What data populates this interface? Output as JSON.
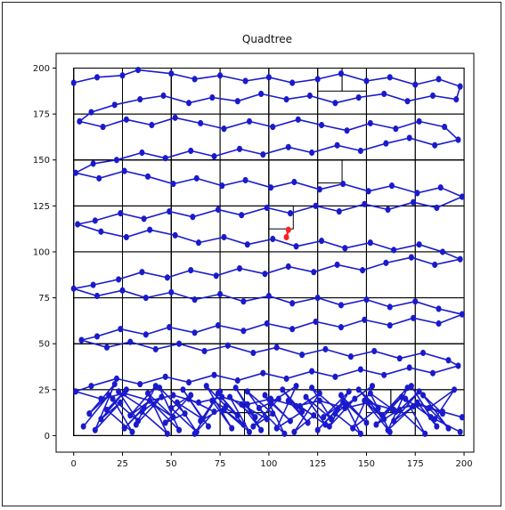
{
  "chart_data": {
    "type": "line",
    "title": "Quadtree",
    "xlabel": "",
    "ylabel": "",
    "xlim": [
      -9,
      205
    ],
    "ylim": [
      -9,
      208
    ],
    "x_ticks": [
      0,
      25,
      50,
      75,
      100,
      125,
      150,
      175,
      200
    ],
    "y_ticks": [
      0,
      25,
      50,
      75,
      100,
      125,
      150,
      175,
      200
    ],
    "grid": false,
    "colors": {
      "path": "#1a1acc",
      "highlight": "#ff2020",
      "cells": "#000000"
    },
    "quadtree_cells": [
      [
        0,
        0,
        200,
        200
      ],
      [
        0,
        0,
        100,
        100
      ],
      [
        100,
        0,
        100,
        100
      ],
      [
        0,
        100,
        100,
        100
      ],
      [
        100,
        100,
        100,
        100
      ],
      [
        0,
        0,
        50,
        50
      ],
      [
        50,
        0,
        50,
        50
      ],
      [
        0,
        50,
        50,
        50
      ],
      [
        50,
        50,
        50,
        50
      ],
      [
        100,
        0,
        50,
        50
      ],
      [
        150,
        0,
        50,
        50
      ],
      [
        100,
        50,
        50,
        50
      ],
      [
        150,
        50,
        50,
        50
      ],
      [
        0,
        100,
        50,
        50
      ],
      [
        50,
        100,
        50,
        50
      ],
      [
        0,
        150,
        50,
        50
      ],
      [
        50,
        150,
        50,
        50
      ],
      [
        100,
        100,
        50,
        50
      ],
      [
        150,
        100,
        50,
        50
      ],
      [
        100,
        150,
        50,
        50
      ],
      [
        150,
        150,
        50,
        50
      ],
      [
        0,
        0,
        25,
        25
      ],
      [
        25,
        0,
        25,
        25
      ],
      [
        0,
        25,
        25,
        25
      ],
      [
        25,
        25,
        25,
        25
      ],
      [
        50,
        0,
        25,
        25
      ],
      [
        75,
        0,
        25,
        25
      ],
      [
        50,
        25,
        25,
        25
      ],
      [
        75,
        25,
        25,
        25
      ],
      [
        100,
        0,
        25,
        25
      ],
      [
        125,
        0,
        25,
        25
      ],
      [
        100,
        25,
        25,
        25
      ],
      [
        125,
        25,
        25,
        25
      ],
      [
        150,
        0,
        25,
        25
      ],
      [
        175,
        0,
        25,
        25
      ],
      [
        150,
        25,
        25,
        25
      ],
      [
        175,
        25,
        25,
        25
      ],
      [
        0,
        50,
        25,
        25
      ],
      [
        25,
        50,
        25,
        25
      ],
      [
        0,
        75,
        25,
        25
      ],
      [
        25,
        75,
        25,
        25
      ],
      [
        50,
        50,
        25,
        25
      ],
      [
        75,
        50,
        25,
        25
      ],
      [
        50,
        75,
        25,
        25
      ],
      [
        75,
        75,
        25,
        25
      ],
      [
        100,
        50,
        25,
        25
      ],
      [
        125,
        50,
        25,
        25
      ],
      [
        100,
        75,
        25,
        25
      ],
      [
        125,
        75,
        25,
        25
      ],
      [
        150,
        50,
        25,
        25
      ],
      [
        175,
        50,
        25,
        25
      ],
      [
        150,
        75,
        25,
        25
      ],
      [
        175,
        75,
        25,
        25
      ],
      [
        0,
        100,
        25,
        25
      ],
      [
        25,
        100,
        25,
        25
      ],
      [
        0,
        125,
        25,
        25
      ],
      [
        25,
        125,
        25,
        25
      ],
      [
        50,
        100,
        25,
        25
      ],
      [
        75,
        100,
        25,
        25
      ],
      [
        50,
        125,
        25,
        25
      ],
      [
        75,
        125,
        25,
        25
      ],
      [
        100,
        100,
        25,
        25
      ],
      [
        125,
        100,
        25,
        25
      ],
      [
        100,
        125,
        25,
        25
      ],
      [
        125,
        125,
        25,
        25
      ],
      [
        150,
        100,
        25,
        25
      ],
      [
        175,
        100,
        25,
        25
      ],
      [
        150,
        125,
        25,
        25
      ],
      [
        175,
        125,
        25,
        25
      ],
      [
        0,
        150,
        25,
        25
      ],
      [
        25,
        150,
        25,
        25
      ],
      [
        0,
        175,
        25,
        25
      ],
      [
        25,
        175,
        25,
        25
      ],
      [
        50,
        150,
        25,
        25
      ],
      [
        75,
        150,
        25,
        25
      ],
      [
        50,
        175,
        25,
        25
      ],
      [
        75,
        175,
        25,
        25
      ],
      [
        100,
        150,
        25,
        25
      ],
      [
        125,
        150,
        25,
        25
      ],
      [
        100,
        175,
        25,
        25
      ],
      [
        125,
        175,
        25,
        25
      ],
      [
        150,
        150,
        25,
        25
      ],
      [
        175,
        150,
        25,
        25
      ],
      [
        150,
        175,
        25,
        25
      ],
      [
        175,
        175,
        25,
        25
      ],
      [
        75,
        0,
        12.5,
        12.5
      ],
      [
        87.5,
        0,
        12.5,
        12.5
      ],
      [
        75,
        12.5,
        12.5,
        12.5
      ],
      [
        87.5,
        12.5,
        12.5,
        12.5
      ],
      [
        150,
        12.5,
        12.5,
        12.5
      ],
      [
        162.5,
        12.5,
        12.5,
        12.5
      ],
      [
        100,
        112.5,
        12.5,
        12.5
      ],
      [
        125,
        137.5,
        12.5,
        12.5
      ],
      [
        125,
        187.5,
        12.5,
        12.5
      ],
      [
        137.5,
        187.5,
        12.5,
        12.5
      ]
    ],
    "highlight_points": [
      [
        110,
        112
      ],
      [
        109,
        108
      ]
    ],
    "series": [
      {
        "x": [
          0,
          12,
          25,
          33,
          50,
          62,
          75,
          88,
          100,
          112,
          125,
          137,
          150,
          162,
          175,
          187,
          198,
          196,
          184,
          171,
          159,
          146,
          134,
          121,
          109,
          96,
          84,
          71,
          59,
          46,
          34,
          21,
          9,
          3,
          15,
          27,
          40,
          52,
          65,
          77,
          90,
          102,
          115,
          127,
          140,
          152,
          165,
          177,
          190,
          197,
          185,
          172,
          160,
          147,
          135,
          122,
          110,
          97,
          85,
          72,
          60,
          47,
          35,
          22,
          10,
          1,
          13,
          26,
          38,
          51,
          63,
          76,
          88,
          101,
          113,
          126,
          138,
          151,
          163,
          176,
          188,
          199,
          186,
          174,
          161,
          149,
          136,
          124,
          111,
          99,
          86,
          74,
          61,
          49,
          36,
          24,
          11,
          2,
          14,
          27,
          39,
          52,
          64,
          77,
          89,
          102,
          114,
          127,
          139,
          152,
          164,
          177,
          189,
          198,
          185,
          173,
          160,
          148,
          135,
          123,
          110,
          98,
          85,
          73,
          60,
          48,
          35,
          23,
          10,
          0,
          12,
          25,
          37,
          50,
          62,
          75,
          87,
          100,
          112,
          125,
          137,
          150,
          162,
          175,
          187,
          199,
          187,
          174,
          162,
          149,
          137,
          124,
          112,
          99,
          87,
          74,
          62,
          49,
          37,
          24,
          12,
          4,
          17,
          29,
          42,
          54,
          67,
          79,
          92,
          104,
          117,
          129,
          142,
          154,
          167,
          179,
          192,
          197,
          184,
          172,
          159,
          147,
          134,
          122,
          109,
          97,
          84,
          72,
          59,
          47,
          34,
          22,
          9,
          1,
          14,
          26,
          39,
          51,
          64,
          76,
          89,
          101,
          114,
          126,
          139,
          151,
          164,
          176,
          189,
          199
        ],
        "y": [
          192,
          195,
          196,
          199,
          197,
          194,
          196,
          193,
          195,
          192,
          194,
          197,
          193,
          195,
          191,
          194,
          190,
          183,
          185,
          182,
          186,
          184,
          181,
          185,
          183,
          186,
          182,
          184,
          181,
          185,
          183,
          180,
          176,
          171,
          168,
          172,
          169,
          173,
          170,
          167,
          171,
          168,
          172,
          169,
          166,
          170,
          167,
          171,
          168,
          161,
          158,
          162,
          159,
          155,
          158,
          154,
          157,
          153,
          156,
          152,
          155,
          151,
          154,
          150,
          148,
          143,
          140,
          144,
          141,
          137,
          140,
          136,
          139,
          135,
          138,
          134,
          137,
          133,
          136,
          132,
          135,
          130,
          124,
          127,
          123,
          126,
          122,
          125,
          121,
          124,
          120,
          123,
          119,
          122,
          118,
          121,
          117,
          115,
          111,
          108,
          112,
          109,
          105,
          108,
          104,
          107,
          103,
          106,
          102,
          105,
          101,
          104,
          100,
          96,
          93,
          97,
          94,
          90,
          93,
          89,
          92,
          88,
          91,
          87,
          90,
          86,
          89,
          85,
          82,
          80,
          76,
          79,
          75,
          78,
          74,
          77,
          73,
          76,
          72,
          75,
          71,
          74,
          70,
          73,
          69,
          66,
          61,
          64,
          60,
          63,
          59,
          62,
          58,
          61,
          57,
          60,
          56,
          59,
          55,
          58,
          54,
          52,
          48,
          51,
          47,
          50,
          46,
          49,
          45,
          48,
          44,
          47,
          43,
          46,
          42,
          45,
          41,
          38,
          34,
          37,
          33,
          36,
          32,
          35,
          31,
          34,
          30,
          33,
          29,
          32,
          28,
          31,
          27,
          24,
          20,
          23,
          19,
          22,
          18,
          21,
          17,
          20,
          16,
          19,
          15,
          18,
          14,
          17,
          13,
          10
        ]
      },
      {
        "x": [
          5,
          18,
          8,
          21,
          11,
          24,
          14,
          27,
          17,
          30,
          20,
          33,
          23,
          36,
          26,
          39,
          29,
          42,
          32,
          45,
          35,
          48,
          38,
          51,
          41,
          54,
          44,
          57,
          47,
          60,
          50,
          63,
          53,
          66,
          56,
          69,
          59,
          72,
          62,
          75,
          65,
          78,
          68,
          81,
          71,
          84,
          74,
          87,
          77,
          90,
          80,
          93,
          83,
          96,
          86,
          99,
          89,
          102,
          92,
          105,
          95,
          108,
          98,
          111,
          101,
          114,
          104,
          117,
          107,
          120,
          110,
          123,
          113,
          126,
          116,
          129,
          119,
          132,
          122,
          135,
          125,
          138,
          128,
          141,
          131,
          144,
          134,
          147,
          137,
          150,
          140,
          153,
          143,
          156,
          146,
          159,
          149,
          162,
          152,
          165,
          155,
          168,
          158,
          171,
          161,
          174,
          164,
          177,
          167,
          180,
          170,
          183,
          173,
          186,
          176,
          189,
          179,
          192,
          182,
          195,
          185,
          198
        ],
        "y": [
          5,
          22,
          12,
          28,
          3,
          18,
          9,
          25,
          14,
          2,
          20,
          8,
          24,
          15,
          4,
          19,
          11,
          27,
          6,
          21,
          13,
          1,
          23,
          10,
          17,
          3,
          26,
          12,
          7,
          22,
          15,
          2,
          18,
          9,
          25,
          5,
          20,
          13,
          1,
          24,
          8,
          16,
          27,
          4,
          19,
          11,
          23,
          6,
          14,
          2,
          21,
          10,
          26,
          3,
          17,
          9,
          24,
          12,
          5,
          20,
          15,
          1,
          22,
          8,
          18,
          27,
          4,
          13,
          25,
          7,
          19,
          11,
          2,
          23,
          16,
          6,
          21,
          9,
          26,
          14,
          3,
          18,
          10,
          24,
          5,
          20,
          12,
          1,
          22,
          7,
          17,
          27,
          4,
          15,
          25,
          9,
          19,
          2,
          23,
          13,
          6,
          21,
          11,
          26,
          3,
          16,
          8,
          24,
          14,
          1,
          20,
          10,
          27,
          5,
          18,
          12,
          22,
          4,
          15,
          25,
          9,
          2
        ]
      }
    ]
  }
}
